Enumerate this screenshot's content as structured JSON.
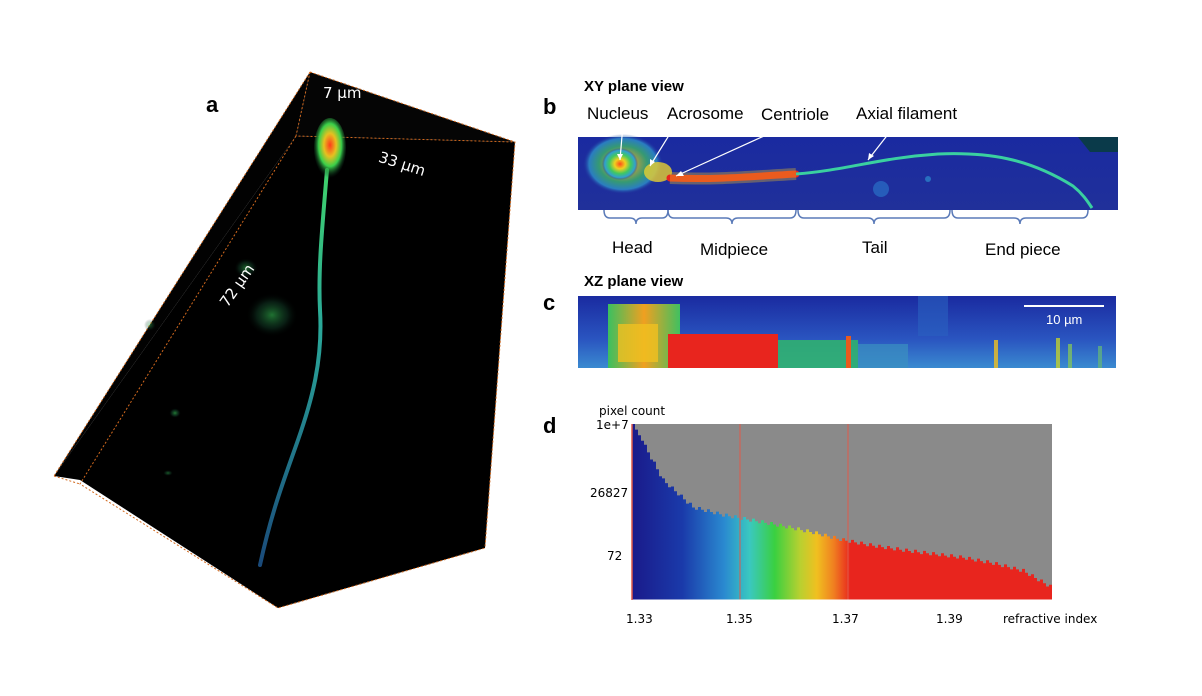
{
  "panels": {
    "a": {
      "letter": "a",
      "dims": {
        "top": "7 µm",
        "right": "33 µm",
        "left": "72 µm"
      }
    },
    "b": {
      "letter": "b",
      "title": "XY plane view",
      "parts": [
        "Nucleus",
        "Acrosome",
        "Centriole",
        "Axial filament"
      ],
      "segments": [
        "Head",
        "Midpiece",
        "Tail",
        "End piece"
      ]
    },
    "c": {
      "letter": "c",
      "title": "XZ plane view",
      "scalebar": "10 µm"
    },
    "d": {
      "letter": "d",
      "ylabel": "pixel count",
      "xlabel": "refractive index"
    }
  },
  "chart_data": {
    "type": "bar",
    "title": "",
    "xlabel": "refractive index",
    "ylabel": "pixel count",
    "y_scale": "log",
    "y_ticks": [
      "1e+7",
      "26827",
      "72"
    ],
    "x_ticks": [
      "1.33",
      "1.35",
      "1.37",
      "1.39"
    ],
    "xlim": [
      1.33,
      1.4
    ],
    "threshold_lines": [
      1.348,
      1.366
    ],
    "colors": {
      "background": "#8a8a8a",
      "low": "#1a2a9a",
      "mid": "#2ec84a",
      "high": "#e8251e"
    },
    "series": [
      {
        "x": [
          1.33,
          1.335,
          1.34,
          1.345,
          1.35,
          1.355,
          1.36,
          1.365,
          1.37,
          1.375,
          1.38,
          1.385,
          1.39,
          1.395,
          1.4
        ],
        "values": [
          10000000,
          60000,
          5000,
          2500,
          1500,
          900,
          500,
          250,
          150,
          100,
          70,
          50,
          30,
          15,
          3
        ]
      }
    ]
  }
}
